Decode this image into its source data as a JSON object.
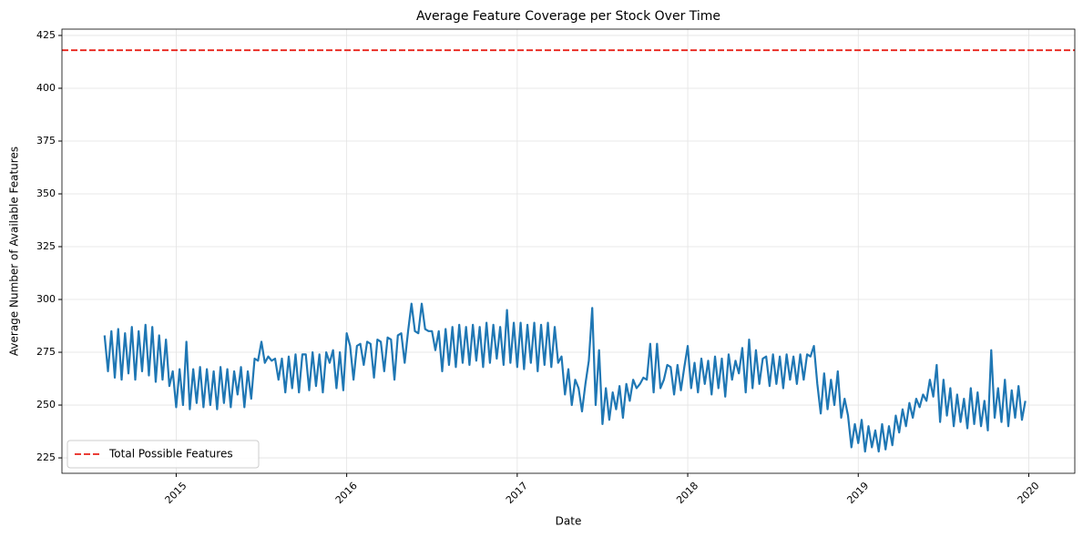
{
  "chart_data": {
    "type": "line",
    "title": "Average Feature Coverage per Stock Over Time",
    "xlabel": "Date",
    "ylabel": "Average Number of Available Features",
    "x": [
      2014.58,
      2014.6,
      2014.62,
      2014.64,
      2014.66,
      2014.68,
      2014.7,
      2014.72,
      2014.74,
      2014.76,
      2014.78,
      2014.8,
      2014.82,
      2014.84,
      2014.86,
      2014.88,
      2014.9,
      2014.92,
      2014.94,
      2014.96,
      2014.98,
      2015,
      2015.02,
      2015.04,
      2015.06,
      2015.08,
      2015.1,
      2015.12,
      2015.14,
      2015.16,
      2015.18,
      2015.2,
      2015.22,
      2015.24,
      2015.26,
      2015.28,
      2015.3,
      2015.32,
      2015.34,
      2015.36,
      2015.38,
      2015.4,
      2015.42,
      2015.44,
      2015.46,
      2015.48,
      2015.5,
      2015.52,
      2015.54,
      2015.56,
      2015.58,
      2015.6,
      2015.62,
      2015.64,
      2015.66,
      2015.68,
      2015.7,
      2015.72,
      2015.74,
      2015.76,
      2015.78,
      2015.8,
      2015.82,
      2015.84,
      2015.86,
      2015.88,
      2015.9,
      2015.92,
      2015.94,
      2015.96,
      2015.98,
      2016,
      2016.02,
      2016.04,
      2016.06,
      2016.08,
      2016.1,
      2016.12,
      2016.14,
      2016.16,
      2016.18,
      2016.2,
      2016.22,
      2016.24,
      2016.26,
      2016.28,
      2016.3,
      2016.32,
      2016.34,
      2016.36,
      2016.38,
      2016.4,
      2016.42,
      2016.44,
      2016.46,
      2016.48,
      2016.5,
      2016.52,
      2016.54,
      2016.56,
      2016.58,
      2016.6,
      2016.62,
      2016.64,
      2016.66,
      2016.68,
      2016.7,
      2016.72,
      2016.74,
      2016.76,
      2016.78,
      2016.8,
      2016.82,
      2016.84,
      2016.86,
      2016.88,
      2016.9,
      2016.92,
      2016.94,
      2016.96,
      2016.98,
      2017,
      2017.02,
      2017.04,
      2017.06,
      2017.08,
      2017.1,
      2017.12,
      2017.14,
      2017.16,
      2017.18,
      2017.2,
      2017.22,
      2017.24,
      2017.26,
      2017.28,
      2017.3,
      2017.32,
      2017.34,
      2017.36,
      2017.38,
      2017.4,
      2017.42,
      2017.44,
      2017.46,
      2017.48,
      2017.5,
      2017.52,
      2017.54,
      2017.56,
      2017.58,
      2017.6,
      2017.62,
      2017.64,
      2017.66,
      2017.68,
      2017.7,
      2017.72,
      2017.74,
      2017.76,
      2017.78,
      2017.8,
      2017.82,
      2017.84,
      2017.86,
      2017.88,
      2017.9,
      2017.92,
      2017.94,
      2017.96,
      2017.98,
      2018,
      2018.02,
      2018.04,
      2018.06,
      2018.08,
      2018.1,
      2018.12,
      2018.14,
      2018.16,
      2018.18,
      2018.2,
      2018.22,
      2018.24,
      2018.26,
      2018.28,
      2018.3,
      2018.32,
      2018.34,
      2018.36,
      2018.38,
      2018.4,
      2018.42,
      2018.44,
      2018.46,
      2018.48,
      2018.5,
      2018.52,
      2018.54,
      2018.56,
      2018.58,
      2018.6,
      2018.62,
      2018.64,
      2018.66,
      2018.68,
      2018.7,
      2018.72,
      2018.74,
      2018.76,
      2018.78,
      2018.8,
      2018.82,
      2018.84,
      2018.86,
      2018.88,
      2018.9,
      2018.92,
      2018.94,
      2018.96,
      2018.98,
      2019,
      2019.02,
      2019.04,
      2019.06,
      2019.08,
      2019.1,
      2019.12,
      2019.14,
      2019.16,
      2019.18,
      2019.2,
      2019.22,
      2019.24,
      2019.26,
      2019.28,
      2019.3,
      2019.32,
      2019.34,
      2019.36,
      2019.38,
      2019.4,
      2019.42,
      2019.44,
      2019.46,
      2019.48,
      2019.5,
      2019.52,
      2019.54,
      2019.56,
      2019.58,
      2019.6,
      2019.62,
      2019.64,
      2019.66,
      2019.68,
      2019.7,
      2019.72,
      2019.74,
      2019.76,
      2019.78,
      2019.8,
      2019.82,
      2019.84,
      2019.86,
      2019.88,
      2019.9,
      2019.92,
      2019.94,
      2019.96,
      2019.98
    ],
    "series": [
      {
        "color": "#1f77b4",
        "values": [
          283,
          266,
          285,
          263,
          286,
          262,
          284,
          265,
          287,
          262,
          285,
          266,
          288,
          264,
          287,
          261,
          283,
          262,
          281,
          259,
          266,
          249,
          267,
          250,
          280,
          248,
          267,
          251,
          268,
          249,
          267,
          250,
          266,
          248,
          268,
          251,
          267,
          249,
          266,
          255,
          268,
          249,
          266,
          253,
          272,
          271,
          280,
          270,
          273,
          271,
          272,
          262,
          272,
          256,
          273,
          258,
          274,
          256,
          274,
          274,
          257,
          275,
          259,
          274,
          256,
          275,
          270,
          276,
          258,
          275,
          257,
          284,
          278,
          262,
          278,
          279,
          269,
          280,
          279,
          263,
          281,
          280,
          266,
          282,
          281,
          262,
          283,
          284,
          270,
          285,
          298,
          285,
          284,
          298,
          286,
          285,
          285,
          276,
          285,
          266,
          286,
          269,
          287,
          268,
          288,
          270,
          287,
          269,
          288,
          271,
          287,
          268,
          289,
          270,
          288,
          272,
          287,
          269,
          295,
          270,
          289,
          268,
          289,
          267,
          288,
          270,
          289,
          266,
          288,
          269,
          289,
          268,
          287,
          270,
          273,
          255,
          267,
          250,
          262,
          258,
          247,
          260,
          271,
          296,
          250,
          276,
          241,
          258,
          243,
          256,
          248,
          259,
          244,
          260,
          252,
          262,
          258,
          260,
          263,
          262,
          279,
          256,
          279,
          258,
          262,
          269,
          268,
          255,
          269,
          257,
          268,
          278,
          258,
          270,
          256,
          272,
          260,
          271,
          255,
          273,
          258,
          272,
          254,
          274,
          262,
          271,
          265,
          277,
          256,
          281,
          258,
          276,
          260,
          272,
          273,
          259,
          274,
          260,
          273,
          258,
          274,
          262,
          273,
          260,
          274,
          262,
          274,
          273,
          278,
          260,
          246,
          265,
          248,
          262,
          250,
          266,
          244,
          253,
          245,
          230,
          241,
          232,
          243,
          228,
          240,
          230,
          238,
          228,
          241,
          229,
          240,
          231,
          245,
          237,
          248,
          240,
          251,
          244,
          253,
          249,
          255,
          252,
          262,
          254,
          269,
          242,
          262,
          245,
          258,
          240,
          255,
          242,
          253,
          239,
          258,
          241,
          256,
          240,
          252,
          238,
          276,
          244,
          258,
          242,
          262,
          240,
          257,
          244,
          259,
          243,
          252
        ]
      }
    ],
    "reference_lines": [
      {
        "name": "Total Possible Features",
        "value": 418,
        "color": "#e8221a",
        "style": "dashed"
      }
    ],
    "xlim": [
      2014.33,
      2020.27
    ],
    "xticks": [
      2015,
      2016,
      2017,
      2018,
      2019,
      2020
    ],
    "ylim": [
      217.7,
      428
    ],
    "yticks": [
      225,
      250,
      275,
      300,
      325,
      350,
      375,
      400,
      425
    ],
    "grid": true,
    "legend": "lower left"
  }
}
